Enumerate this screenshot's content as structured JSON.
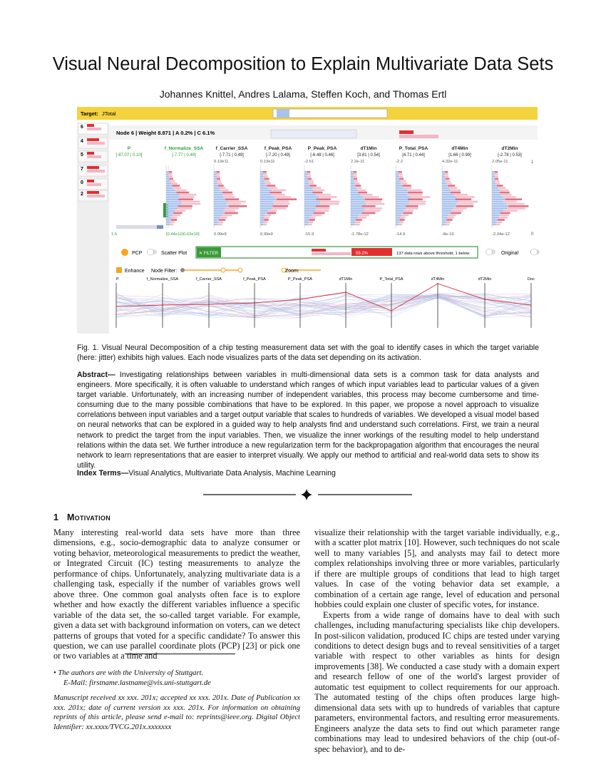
{
  "title": "Visual Neural Decomposition to Explain Multivariate Data Sets",
  "authors": "Johannes Knittel, Andres Lalama, Steffen Koch, and Thomas Ertl",
  "figure": {
    "target_label": "Target:",
    "target_name": "JTotal",
    "node_ids": [
      "6",
      "4",
      "5",
      "7",
      "0",
      "2"
    ],
    "node_header": "Node 6 | Weight 8.871 | A 0.2% | C 6.1%",
    "columns": [
      {
        "name": "P",
        "range": "[-87.07 | 0.10]",
        "bottom": "1.5",
        "color": "#2e9e3a"
      },
      {
        "name": "f_Normalize_SSA",
        "range": "[-7.77 | 0.49]",
        "bottom": "[0.44e10|0.63e10]",
        "color": "#2e9e3a"
      },
      {
        "name": "f_Carrier_SSA",
        "range": "[-7.71 | 0.49]",
        "top": "0.13e11",
        "bottom": "0.99e9",
        "color": "#222222"
      },
      {
        "name": "f_Peak_PSA",
        "range": "[-7.20 | 0.49]",
        "top": "0.13e11",
        "bottom": "0.99e9",
        "color": "#222222"
      },
      {
        "name": "P_Peak_PSA",
        "range": "[-6.48 | 0.46]",
        "top": "-2.61",
        "bottom": "-15.9",
        "color": "#222222"
      },
      {
        "name": "dT1Min",
        "range": "[3.81 | 0.54]",
        "top": "2.2e-11",
        "bottom": "-1.78e-12",
        "color": "#222222"
      },
      {
        "name": "P_Total_PSA",
        "range": "[4.71 | 0.44]",
        "top": "-2.2",
        "bottom": "-14.9",
        "color": "#222222"
      },
      {
        "name": "dT4Min",
        "range": "[1.66 | 0.99]",
        "top": "4.32e-11",
        "bottom": "-8e-10",
        "color": "#222222"
      },
      {
        "name": "dT2Min",
        "range": "[-2.78 | 0.53]",
        "top": "2.05e-11",
        "bottom": "-2.34e-12",
        "color": "#222222"
      }
    ],
    "edge_top": "1",
    "edge_bottom": "0",
    "pcp_label": "PCP",
    "scatter_label": "Scatter Plot",
    "filter_label": "✕ FILTER",
    "filter_percent": "59.2%",
    "filter_info": "137 data rows above threshold, 1 below",
    "original_label": "Original",
    "enhance_label": "Enhance",
    "node_filter_label": "Node Filter:",
    "zoom_label": "Zoom:",
    "pcp_axes": [
      "P",
      "f_Normalize_SSA",
      "f_Carrier_SSA",
      "f_Peak_PSA",
      "P_Peak_PSA",
      "dT1Min",
      "P_Total_PSA",
      "dT4Min",
      "dT2Min",
      "Doc"
    ]
  },
  "caption": "Fig. 1. Visual Neural Decomposition of a chip testing measurement data set with the goal to identify cases in which the target variable (here: jitter) exhibits high values. Each node visualizes parts of the data set depending on its activation.",
  "abstract": {
    "label": "Abstract—",
    "text": "Investigating relationships between variables in multi-dimensional data sets is a common task for data analysts and engineers. More specifically, it is often valuable to understand which ranges of which input variables lead to particular values of a given target variable. Unfortunately, with an increasing number of independent variables, this process may become cumbersome and time-consuming due to the many possible combinations that have to be explored. In this paper, we propose a novel approach to visualize correlations between input variables and a target output variable that scales to hundreds of variables. We developed a visual model based on neural networks that can be explored in a guided way to help analysts find and understand such correlations. First, we train a neural network to predict the target from the input variables. Then, we visualize the inner workings of the resulting model to help understand relations within the data set. We further introduce a new regularization term for the backpropagation algorithm that encourages the neural network to learn representations that are easier to interpret visually. We apply our method to artificial and real-world data sets to show its utility."
  },
  "index_terms": {
    "label": "Index Terms—",
    "text": "Visual Analytics, Multivariate Data Analysis, Machine Learning"
  },
  "section": {
    "number": "1",
    "title": "Motivation"
  },
  "left_column": "Many interesting real-world data sets have more than three dimensions, e.g., socio-demographic data to analyze consumer or voting behavior, meteorological measurements to predict the weather, or Integrated Circuit (IC) testing measurements to analyze the performance of chips. Unfortunately, analyzing multivariate data is a challenging task, especially if the number of variables grows well above three. One common goal analysts often face is to explore whether and how exactly the different variables influence a specific variable of the data set, the so-called target variable. For example, given a data set with background information on voters, can we detect patterns of groups that voted for a specific candidate? To answer this question, we can use parallel coordinate plots (PCP) [23] or pick one or two variables at a time and",
  "footnote": {
    "affiliation": "• The authors are with the University of Stuttgart.",
    "email": "E-Mail: firstname.lastname@vis.uni-stuttgart.de",
    "manuscript": "Manuscript received xx xxx. 201x; accepted xx xxx. 201x. Date of Publication xx xxx. 201x; date of current version xx xxx. 201x. For information on obtaining reprints of this article, please send e-mail to: reprints@ieee.org. Digital Object Identifier: xx.xxxx/TVCG.201x.xxxxxxx"
  },
  "right_column": [
    "visualize their relationship with the target variable individually, e.g., with a scatter plot matrix [10]. However, such techniques do not scale well to many variables [5], and analysts may fail to detect more complex relationships involving three or more variables, particularly if there are multiple groups of conditions that lead to high target values. In case of the voting behavior data set example, a combination of a certain age range, level of education and personal hobbies could explain one cluster of specific votes, for instance.",
    "Experts from a wide range of domains have to deal with such challenges, including manufacturing specialists like chip developers. In post-silicon validation, produced IC chips are tested under varying conditions to detect design bugs and to reveal sensitivities of a target variable with respect to other variables as hints for design improvements [38]. We conducted a case study with a domain expert and research fellow of one of the world's largest provider of automatic test equipment to collect requirements for our approach. The automated testing of the chips often produces large high-dimensional data sets with up to hundreds of variables that capture parameters, environmental factors, and resulting error measurements. Engineers analyze the data sets to find out which parameter range combinations may lead to undesired behaviors of the chip (out-of-spec behavior), and to de-"
  ]
}
